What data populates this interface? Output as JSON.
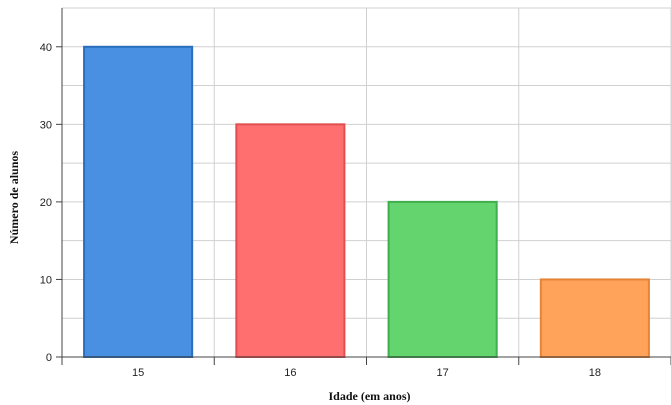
{
  "chart_data": {
    "type": "bar",
    "title": "",
    "xlabel": "Idade (em anos)",
    "ylabel": "Número de alunos",
    "categories": [
      "15",
      "16",
      "17",
      "18"
    ],
    "values": [
      40,
      30,
      20,
      10
    ],
    "colors": [
      "#4a90e2",
      "#ff6f6f",
      "#63d46e",
      "#ffa25a"
    ],
    "border_colors": [
      "#2a6ebd",
      "#e05050",
      "#3fae4c",
      "#e58437"
    ],
    "ylim": [
      0,
      45
    ],
    "yticks": [
      0,
      10,
      20,
      30,
      40
    ],
    "grid": true,
    "legend": "none"
  }
}
